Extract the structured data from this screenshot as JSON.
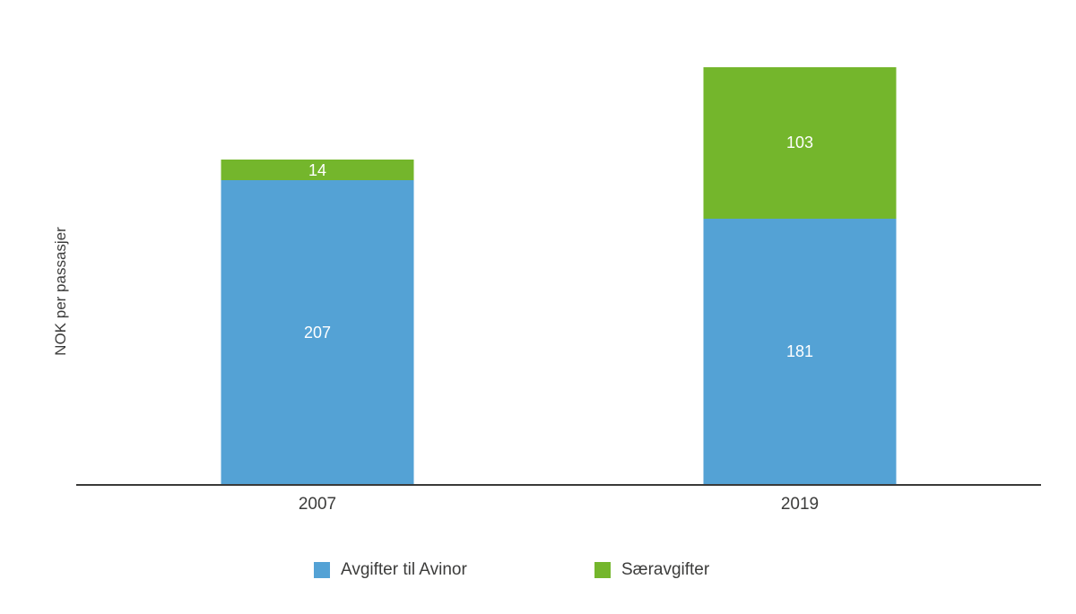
{
  "chart_data": {
    "type": "bar",
    "stacked": true,
    "title": "",
    "xlabel": "",
    "ylabel": "NOK per passasjer",
    "categories": [
      "2007",
      "2019"
    ],
    "series": [
      {
        "name": "Avgifter til Avinor",
        "color": "#54a2d5",
        "values": [
          207,
          181
        ]
      },
      {
        "name": "Særavgifter",
        "color": "#74b62c",
        "values": [
          14,
          103
        ]
      }
    ],
    "totals": [
      221,
      284
    ],
    "ylim": [
      0,
      290
    ],
    "grid": false,
    "legend_position": "bottom",
    "data_label_color": "#ffffff",
    "axis_color": "#3a3a39",
    "text_color": "#3c3c3b"
  }
}
